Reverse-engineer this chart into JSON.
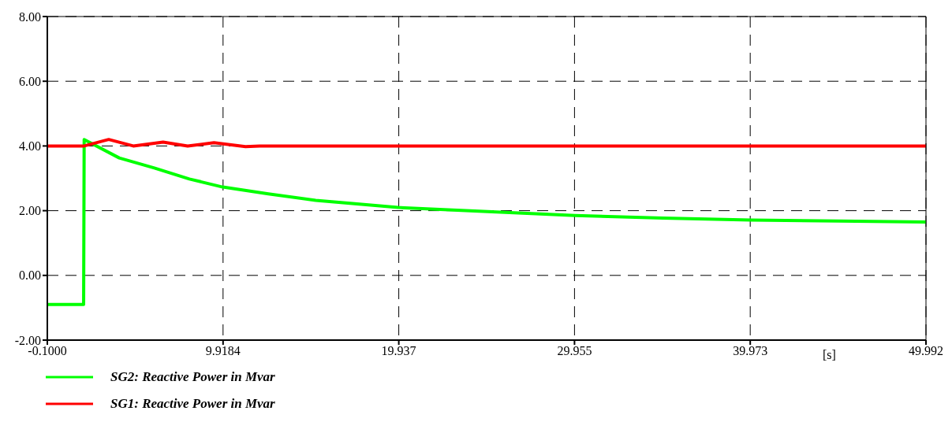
{
  "chart_data": {
    "type": "line",
    "xlabel": "[s]",
    "xlim": [
      -0.1,
      49.992
    ],
    "xticks": [
      {
        "value": -0.1,
        "label": "-0.1000"
      },
      9.9184,
      19.937,
      29.955,
      39.973,
      49.992
    ],
    "ylim": [
      -2,
      8
    ],
    "yticks": [
      {
        "value": -2,
        "label": "-2.00"
      },
      {
        "value": 0,
        "label": "0.00"
      },
      {
        "value": 2,
        "label": "2.00"
      },
      {
        "value": 4,
        "label": "4.00"
      },
      {
        "value": 6,
        "label": "6.00"
      },
      {
        "value": 8,
        "label": "8.00"
      }
    ],
    "grid": true,
    "legend": "bottom left",
    "line_style": "solid",
    "marker": "none",
    "series": [
      {
        "name": "SG2: Reactive Power in Mvar",
        "color": "#00ff00",
        "x": [
          -0.1,
          1.97,
          2.0,
          4,
          6,
          8,
          9.9,
          12.5,
          15.2,
          19.9,
          25,
          30,
          35,
          40,
          45,
          49.992
        ],
        "values": [
          -0.9,
          -0.9,
          4.2,
          3.63,
          3.32,
          2.98,
          2.73,
          2.52,
          2.32,
          2.1,
          1.97,
          1.85,
          1.77,
          1.71,
          1.68,
          1.65
        ]
      },
      {
        "name": "SG1: Reactive Power in Mvar",
        "color": "#ff0000",
        "x": [
          -0.1,
          2.0,
          3.4,
          4.8,
          6.5,
          7.9,
          9.4,
          11.2,
          12,
          49.992
        ],
        "values": [
          4.0,
          4.0,
          4.2,
          4.0,
          4.12,
          4.0,
          4.1,
          3.98,
          4.0,
          4.0
        ]
      }
    ]
  }
}
